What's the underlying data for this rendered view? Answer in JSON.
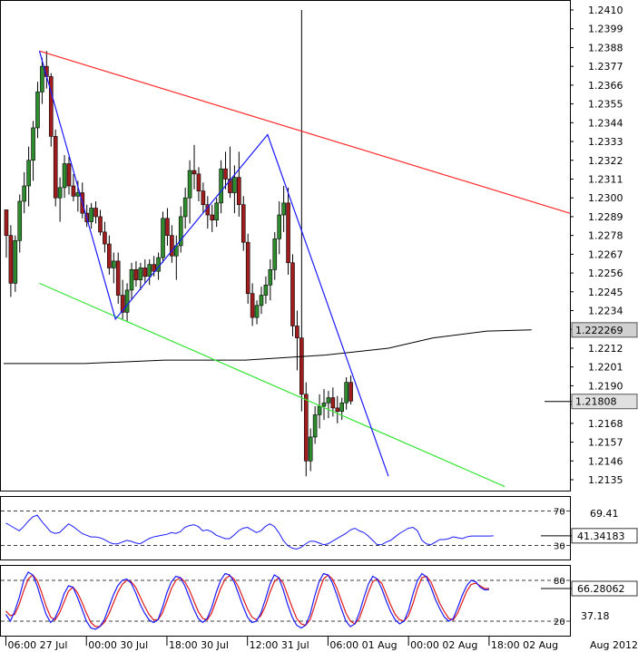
{
  "chart_data": [
    {
      "type": "candlestick",
      "title": "",
      "price_axis": {
        "ticks": [
          1.241,
          1.2399,
          1.2388,
          1.2377,
          1.2366,
          1.2355,
          1.2344,
          1.2333,
          1.2322,
          1.2311,
          1.23,
          1.2289,
          1.2278,
          1.2267,
          1.2256,
          1.2245,
          1.2234,
          1.2223,
          1.2212,
          1.2201,
          1.219,
          1.2179,
          1.2168,
          1.2157,
          1.2146,
          1.2135
        ],
        "tick_labels": [
          "1.2410",
          "1.2399",
          "1.2388",
          "1.2377",
          "1.2366",
          "1.2355",
          "1.2344",
          "1.2333",
          "1.2322",
          "1.2311",
          "1.2300",
          "1.2289",
          "1.2278",
          "1.2267",
          "1.2256",
          "1.2245",
          "1.2234",
          "",
          "1.2212",
          "1.2201",
          "1.2190",
          "",
          "1.2168",
          "1.2157",
          "1.2146",
          "1.2135"
        ],
        "ylim": [
          1.2128,
          1.2414
        ]
      },
      "time_axis": {
        "labels": [
          "06:00 27 Jul",
          "00:00 30 Jul",
          "18:00 30 Jul",
          "12:00 31 Jul",
          "06:00 01 Aug",
          "00:00 02 Aug",
          "18:00 02 Aug"
        ],
        "label_bars": [
          0,
          18,
          36,
          54,
          72,
          90,
          108
        ],
        "corner_label": "Aug 2012"
      },
      "price_badges": [
        {
          "label": "1.222269",
          "value": 1.222269,
          "style": "moving-average"
        },
        {
          "label": "1.21808",
          "value": 1.21808,
          "style": "last-price"
        }
      ],
      "colors": {
        "bull": "#2e8b2e",
        "bear": "#a11d1d",
        "ma": "#000000",
        "resistance": "#ff2a2a",
        "support": "#33e633",
        "zigzag": "#1a1aff"
      },
      "candles": [
        [
          1.2293,
          1.2293,
          1.2265,
          1.2278
        ],
        [
          1.2278,
          1.2284,
          1.2242,
          1.225
        ],
        [
          1.225,
          1.2278,
          1.2245,
          1.2275
        ],
        [
          1.2275,
          1.2302,
          1.2268,
          1.2298
        ],
        [
          1.2298,
          1.2315,
          1.2291,
          1.2307
        ],
        [
          1.2307,
          1.233,
          1.2295,
          1.2322
        ],
        [
          1.2322,
          1.2345,
          1.231,
          1.2341
        ],
        [
          1.2341,
          1.2368,
          1.2335,
          1.2362
        ],
        [
          1.2362,
          1.2382,
          1.2355,
          1.2377
        ],
        [
          1.2377,
          1.2386,
          1.2364,
          1.2371
        ],
        [
          1.2371,
          1.2373,
          1.233,
          1.2336
        ],
        [
          1.2336,
          1.234,
          1.2295,
          1.23
        ],
        [
          1.23,
          1.2312,
          1.2286,
          1.2306
        ],
        [
          1.2306,
          1.2325,
          1.23,
          1.232
        ],
        [
          1.232,
          1.2324,
          1.2302,
          1.2307
        ],
        [
          1.2307,
          1.2314,
          1.2298,
          1.2301
        ],
        [
          1.2301,
          1.231,
          1.2292,
          1.2303
        ],
        [
          1.2303,
          1.2309,
          1.2288,
          1.2291
        ],
        [
          1.2291,
          1.2296,
          1.2283,
          1.2286
        ],
        [
          1.2286,
          1.2297,
          1.2282,
          1.2294
        ],
        [
          1.2294,
          1.2298,
          1.2285,
          1.2289
        ],
        [
          1.2289,
          1.2293,
          1.2278,
          1.228
        ],
        [
          1.228,
          1.2286,
          1.2268,
          1.2273
        ],
        [
          1.2273,
          1.2278,
          1.2255,
          1.2259
        ],
        [
          1.2259,
          1.2268,
          1.225,
          1.2263
        ],
        [
          1.2263,
          1.2268,
          1.2238,
          1.2243
        ],
        [
          1.2243,
          1.2252,
          1.2229,
          1.2233
        ],
        [
          1.2233,
          1.225,
          1.2228,
          1.2246
        ],
        [
          1.2246,
          1.2262,
          1.224,
          1.2258
        ],
        [
          1.2258,
          1.2263,
          1.2248,
          1.2252
        ],
        [
          1.2252,
          1.2262,
          1.2246,
          1.2259
        ],
        [
          1.2259,
          1.2264,
          1.225,
          1.2254
        ],
        [
          1.2254,
          1.2264,
          1.2249,
          1.2261
        ],
        [
          1.2261,
          1.2266,
          1.2254,
          1.2257
        ],
        [
          1.2257,
          1.2268,
          1.2252,
          1.2265
        ],
        [
          1.2265,
          1.2292,
          1.2262,
          1.2288
        ],
        [
          1.2288,
          1.2294,
          1.2272,
          1.2278
        ],
        [
          1.2278,
          1.2284,
          1.2262,
          1.2266
        ],
        [
          1.2266,
          1.2278,
          1.2252,
          1.2272
        ],
        [
          1.2272,
          1.2295,
          1.2268,
          1.2289
        ],
        [
          1.2289,
          1.2306,
          1.2282,
          1.23
        ],
        [
          1.23,
          1.2322,
          1.2285,
          1.2316
        ],
        [
          1.2316,
          1.2331,
          1.2305,
          1.2314
        ],
        [
          1.2314,
          1.2318,
          1.2298,
          1.2304
        ],
        [
          1.2304,
          1.2309,
          1.2291,
          1.2296
        ],
        [
          1.2296,
          1.2301,
          1.2282,
          1.229
        ],
        [
          1.229,
          1.2296,
          1.228,
          1.2287
        ],
        [
          1.2287,
          1.23,
          1.2283,
          1.2297
        ],
        [
          1.2297,
          1.2322,
          1.2291,
          1.2317
        ],
        [
          1.2317,
          1.2327,
          1.2305,
          1.2311
        ],
        [
          1.2311,
          1.233,
          1.23,
          1.2303
        ],
        [
          1.2303,
          1.2319,
          1.2291,
          1.2312
        ],
        [
          1.2312,
          1.2327,
          1.2289,
          1.2296
        ],
        [
          1.2296,
          1.2301,
          1.2269,
          1.2274
        ],
        [
          1.2274,
          1.2279,
          1.2238,
          1.2244
        ],
        [
          1.2244,
          1.225,
          1.2225,
          1.223
        ],
        [
          1.223,
          1.224,
          1.2226,
          1.2237
        ],
        [
          1.2237,
          1.2248,
          1.2232,
          1.2243
        ],
        [
          1.2243,
          1.2254,
          1.2238,
          1.2249
        ],
        [
          1.2249,
          1.2264,
          1.224,
          1.2258
        ],
        [
          1.2258,
          1.228,
          1.2252,
          1.2276
        ],
        [
          1.2276,
          1.2298,
          1.2267,
          1.229
        ],
        [
          1.229,
          1.2307,
          1.228,
          1.2297
        ],
        [
          1.2297,
          1.2306,
          1.2255,
          1.2262
        ],
        [
          1.2262,
          1.2267,
          1.2219,
          1.2225
        ],
        [
          1.2225,
          1.2234,
          1.2199,
          1.2218
        ],
        [
          1.2218,
          1.241,
          1.2175,
          1.2185
        ],
        [
          1.2185,
          1.2192,
          1.2137,
          1.2146
        ],
        [
          1.2146,
          1.2165,
          1.214,
          1.216
        ],
        [
          1.216,
          1.2178,
          1.2156,
          1.2173
        ],
        [
          1.2173,
          1.2185,
          1.2165,
          1.2178
        ],
        [
          1.2178,
          1.2188,
          1.217,
          1.218
        ],
        [
          1.218,
          1.2187,
          1.2171,
          1.2183
        ],
        [
          1.2183,
          1.2189,
          1.2172,
          1.2177
        ],
        [
          1.2177,
          1.2184,
          1.2168,
          1.2175
        ],
        [
          1.2175,
          1.2183,
          1.217,
          1.218
        ],
        [
          1.218,
          1.2195,
          1.2176,
          1.2192
        ],
        [
          1.2192,
          1.2196,
          1.2179,
          1.2181
        ]
      ],
      "ma_series": [
        [
          0,
          1.2203
        ],
        [
          18,
          1.2203
        ],
        [
          36,
          1.2205
        ],
        [
          54,
          1.2205
        ],
        [
          72,
          1.2208
        ],
        [
          86,
          1.2212
        ],
        [
          96,
          1.2218
        ],
        [
          108,
          1.2222
        ],
        [
          118,
          1.22227
        ]
      ],
      "trendlines": [
        {
          "name": "resistance",
          "from": [
            8,
            1.2386
          ],
          "to": [
            128,
            1.2291
          ]
        },
        {
          "name": "support",
          "from": [
            8,
            1.225
          ],
          "to": [
            112,
            1.2131
          ]
        }
      ],
      "zigzag": [
        [
          8,
          1.2386
        ],
        [
          25,
          1.2229
        ],
        [
          59,
          1.2337
        ],
        [
          86,
          1.2137
        ]
      ]
    },
    {
      "type": "line",
      "name": "rsi-panel",
      "levels": [
        70,
        30
      ],
      "level_labels": [
        "70",
        "30"
      ],
      "ylim": [
        15,
        85
      ],
      "current_label": "41.34183",
      "scale_label": "69.41",
      "series": [
        {
          "values": [
            56,
            53,
            50,
            47,
            52,
            58,
            63,
            65,
            58,
            52,
            46,
            44,
            45,
            50,
            55,
            52,
            48,
            44,
            42,
            40,
            40,
            39,
            37,
            34,
            32,
            32,
            34,
            36,
            35,
            33,
            32,
            35,
            38,
            40,
            41,
            42,
            43,
            45,
            44,
            46,
            51,
            53,
            54,
            52,
            47,
            48,
            46,
            42,
            40,
            38,
            38,
            42,
            47,
            50,
            51,
            48,
            45,
            47,
            52,
            55,
            52,
            45,
            36,
            30,
            27,
            26,
            28,
            32,
            35,
            35,
            33,
            31,
            32,
            35,
            38,
            41,
            44,
            48,
            50,
            47,
            45,
            41,
            36,
            31,
            31,
            34,
            36,
            40,
            44,
            47,
            50,
            51,
            47,
            36,
            32,
            31,
            34,
            37,
            37,
            38,
            40,
            39,
            38,
            40,
            41,
            41,
            41,
            41,
            41,
            41.3
          ]
        }
      ]
    },
    {
      "type": "line",
      "name": "stochastic-panel",
      "levels": [
        80,
        20
      ],
      "level_labels": [
        "80",
        "20"
      ],
      "ylim": [
        0,
        100
      ],
      "current_label": "66.28062",
      "scale_label": "37.18",
      "series": [
        {
          "color": "#1a1aff",
          "values": [
            30,
            20,
            35,
            55,
            80,
            92,
            88,
            72,
            50,
            30,
            18,
            25,
            40,
            60,
            72,
            70,
            55,
            38,
            20,
            10,
            8,
            12,
            22,
            40,
            58,
            72,
            80,
            82,
            76,
            62,
            45,
            32,
            22,
            18,
            22,
            40,
            62,
            78,
            86,
            84,
            72,
            55,
            38,
            24,
            18,
            24,
            40,
            62,
            80,
            90,
            88,
            78,
            60,
            42,
            26,
            18,
            20,
            32,
            52,
            74,
            88,
            84,
            66,
            44,
            26,
            14,
            10,
            14,
            30,
            56,
            78,
            90,
            88,
            76,
            58,
            38,
            20,
            12,
            16,
            32,
            54,
            74,
            86,
            82,
            68,
            50,
            34,
            22,
            16,
            20,
            36,
            60,
            80,
            90,
            85,
            70,
            52,
            38,
            26,
            20,
            24,
            40,
            58,
            72,
            80,
            78,
            70,
            66,
            66.3
          ]
        },
        {
          "color": "#e01a1a",
          "values": [
            35,
            28,
            30,
            45,
            65,
            82,
            88,
            80,
            62,
            42,
            26,
            22,
            32,
            48,
            64,
            70,
            62,
            48,
            32,
            18,
            12,
            12,
            18,
            30,
            46,
            62,
            74,
            80,
            78,
            70,
            56,
            42,
            30,
            22,
            22,
            32,
            50,
            68,
            80,
            84,
            78,
            66,
            50,
            34,
            24,
            22,
            32,
            50,
            68,
            82,
            87,
            82,
            70,
            54,
            38,
            26,
            22,
            28,
            42,
            62,
            78,
            84,
            76,
            58,
            40,
            24,
            16,
            14,
            22,
            42,
            64,
            82,
            88,
            82,
            68,
            50,
            32,
            20,
            16,
            24,
            42,
            62,
            78,
            82,
            76,
            60,
            44,
            30,
            22,
            20,
            28,
            46,
            68,
            84,
            86,
            78,
            62,
            46,
            34,
            24,
            22,
            32,
            48,
            64,
            74,
            76,
            72,
            68,
            68
          ]
        }
      ]
    }
  ]
}
